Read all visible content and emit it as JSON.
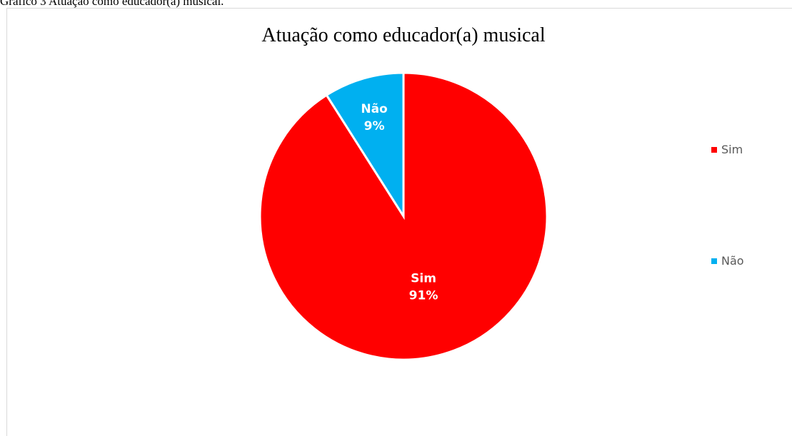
{
  "caption": "Gráfico 3 Atuação como educador(a) musical.",
  "chart_data": {
    "type": "pie",
    "title": "Atuação como educador(a) musical",
    "slices": [
      {
        "name": "Sim",
        "value": 91,
        "label": "91%",
        "color": "#ff0000"
      },
      {
        "name": "Não",
        "value": 9,
        "label": "9%",
        "color": "#00b0f0"
      }
    ],
    "legend_position": "right",
    "start_angle": "top, clockwise"
  }
}
